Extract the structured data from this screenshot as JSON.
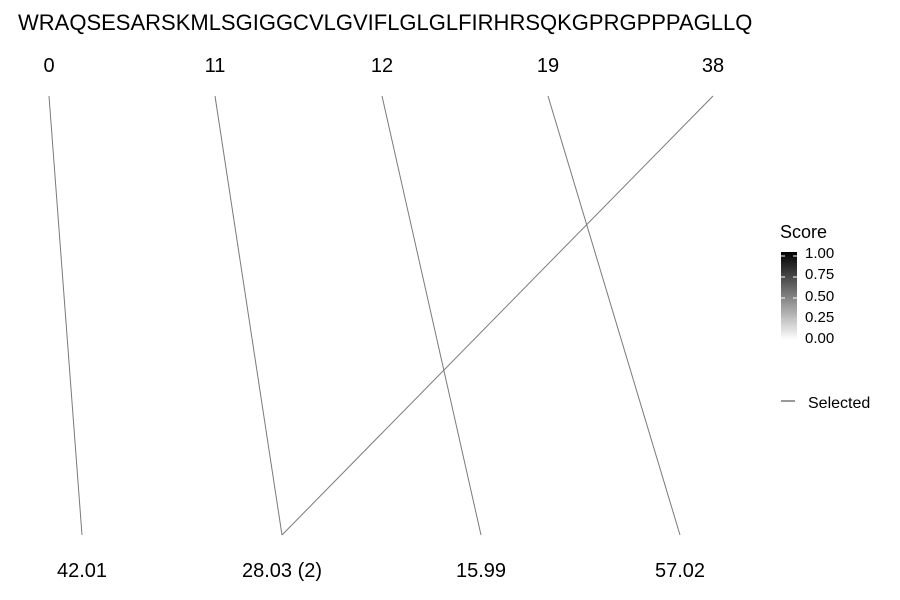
{
  "sequence": "WRAQSESARSKMLSGIGGCVLGVIFLGLGLFIRHRSQKGPRGPPPAGLLQ",
  "top_positions": [
    "0",
    "11",
    "12",
    "19",
    "38"
  ],
  "bottom_labels": [
    "42.01",
    "28.03 (2)",
    "15.99",
    "57.02"
  ],
  "connections": [
    {
      "top": 0,
      "bottom": 0
    },
    {
      "top": 1,
      "bottom": 1
    },
    {
      "top": 2,
      "bottom": 2
    },
    {
      "top": 3,
      "bottom": 3
    },
    {
      "top": 4,
      "bottom": 1
    }
  ],
  "legend": {
    "score_title": "Score",
    "score_ticks": [
      "1.00",
      "0.75",
      "0.50",
      "0.25",
      "0.00"
    ],
    "selected_label": "Selected"
  },
  "colors": {
    "line": "#7a7a7a",
    "gradient_top": "#000000",
    "gradient_bottom": "#ffffff"
  }
}
